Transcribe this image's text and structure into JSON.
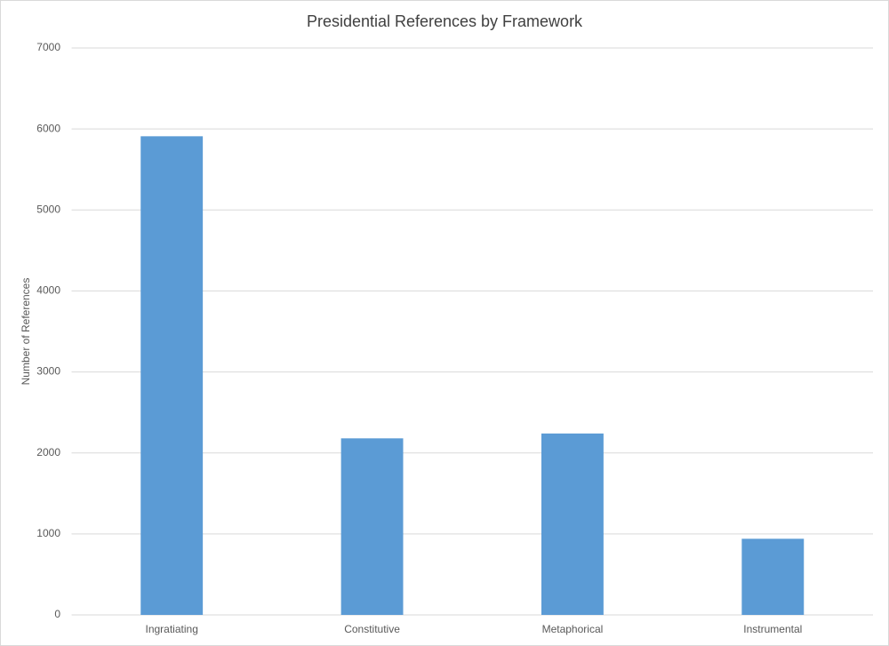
{
  "chart_data": {
    "type": "bar",
    "title": "Presidential References by Framework",
    "y_label": "Number of References",
    "categories": [
      "Ingratiating",
      "Constitutive",
      "Metaphorical",
      "Instrumental"
    ],
    "values": [
      5910,
      2180,
      2240,
      940
    ],
    "color": "#5b9bd5",
    "ylim": [
      0,
      7000
    ],
    "yticks": [
      0,
      1000,
      2000,
      3000,
      4000,
      5000,
      6000,
      7000
    ],
    "grid": true
  }
}
